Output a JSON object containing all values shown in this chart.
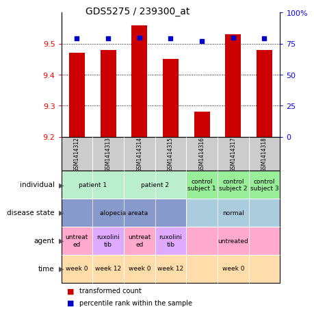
{
  "title": "GDS5275 / 239300_at",
  "samples": [
    "GSM1414312",
    "GSM1414313",
    "GSM1414314",
    "GSM1414315",
    "GSM1414316",
    "GSM1414317",
    "GSM1414318"
  ],
  "bar_values": [
    9.47,
    9.48,
    9.56,
    9.45,
    9.28,
    9.53,
    9.48
  ],
  "percentile_values": [
    79,
    79,
    80,
    79,
    77,
    80,
    79
  ],
  "ylim_left": [
    9.2,
    9.6
  ],
  "ylim_right": [
    0,
    100
  ],
  "yticks_left": [
    9.2,
    9.3,
    9.4,
    9.5
  ],
  "yticks_right": [
    0,
    25,
    50,
    75,
    100
  ],
  "bar_color": "#cc0000",
  "percentile_color": "#0000cc",
  "sample_box_color": "#cccccc",
  "row_labels": [
    "individual",
    "disease state",
    "agent",
    "time"
  ],
  "individual_groups": [
    {
      "label": "patient 1",
      "cols": [
        0,
        1
      ],
      "color": "#bbeecc"
    },
    {
      "label": "patient 2",
      "cols": [
        2,
        3
      ],
      "color": "#bbeecc"
    },
    {
      "label": "control\nsubject 1",
      "cols": [
        4
      ],
      "color": "#99ee99"
    },
    {
      "label": "control\nsubject 2",
      "cols": [
        5
      ],
      "color": "#99ee99"
    },
    {
      "label": "control\nsubject 3",
      "cols": [
        6
      ],
      "color": "#99ee99"
    }
  ],
  "disease_groups": [
    {
      "label": "alopecia areata",
      "cols": [
        0,
        1,
        2,
        3
      ],
      "color": "#8899cc"
    },
    {
      "label": "normal",
      "cols": [
        4,
        5,
        6
      ],
      "color": "#aaccdd"
    }
  ],
  "agent_groups": [
    {
      "label": "untreat\ned",
      "cols": [
        0
      ],
      "color": "#ffaacc"
    },
    {
      "label": "ruxolini\ntib",
      "cols": [
        1
      ],
      "color": "#ddaaff"
    },
    {
      "label": "untreat\ned",
      "cols": [
        2
      ],
      "color": "#ffaacc"
    },
    {
      "label": "ruxolini\ntib",
      "cols": [
        3
      ],
      "color": "#ddaaff"
    },
    {
      "label": "untreated",
      "cols": [
        4,
        5,
        6
      ],
      "color": "#ffaacc"
    }
  ],
  "time_groups": [
    {
      "label": "week 0",
      "cols": [
        0
      ],
      "color": "#ffddaa"
    },
    {
      "label": "week 12",
      "cols": [
        1
      ],
      "color": "#ffddaa"
    },
    {
      "label": "week 0",
      "cols": [
        2
      ],
      "color": "#ffddaa"
    },
    {
      "label": "week 12",
      "cols": [
        3
      ],
      "color": "#ffddaa"
    },
    {
      "label": "week 0",
      "cols": [
        4,
        5,
        6
      ],
      "color": "#ffddaa"
    }
  ],
  "legend_items": [
    {
      "color": "#cc0000",
      "label": "transformed count"
    },
    {
      "color": "#0000cc",
      "label": "percentile rank within the sample"
    }
  ]
}
